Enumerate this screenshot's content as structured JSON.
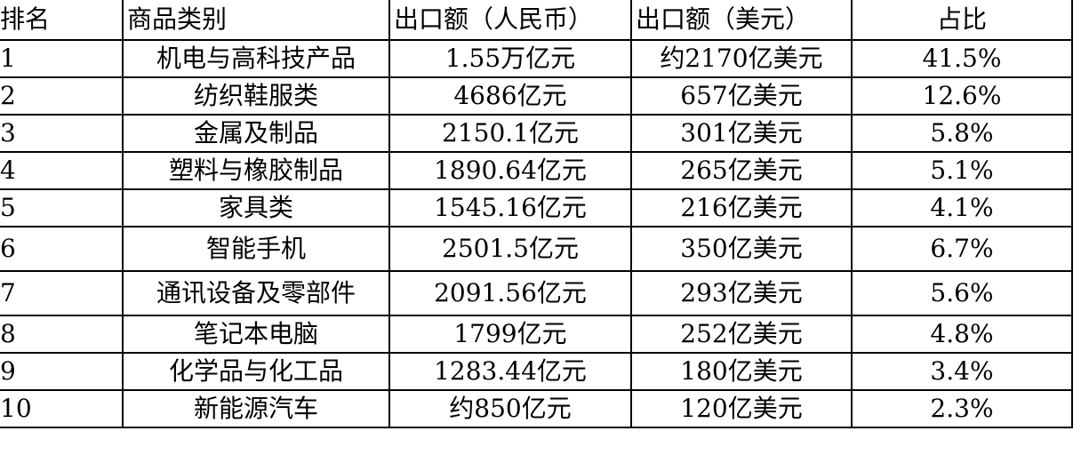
{
  "table": {
    "headers": {
      "rank": "排名",
      "category": "商品类别",
      "export_cny": "出口额（人民币）",
      "export_usd": "出口额（美元）",
      "share": "占比"
    },
    "rows": [
      {
        "rank": "1",
        "category": "机电与高科技产品",
        "export_cny": "1.55万亿元",
        "export_usd": "约2170亿美元",
        "share": "41.5%"
      },
      {
        "rank": "2",
        "category": "纺织鞋服类",
        "export_cny": "4686亿元",
        "export_usd": "657亿美元",
        "share": "12.6%"
      },
      {
        "rank": "3",
        "category": "金属及制品",
        "export_cny": "2150.1亿元",
        "export_usd": "301亿美元",
        "share": "5.8%"
      },
      {
        "rank": "4",
        "category": "塑料与橡胶制品",
        "export_cny": "1890.64亿元",
        "export_usd": "265亿美元",
        "share": "5.1%"
      },
      {
        "rank": "5",
        "category": "家具类",
        "export_cny": "1545.16亿元",
        "export_usd": "216亿美元",
        "share": "4.1%"
      },
      {
        "rank": "6",
        "category": "智能手机",
        "export_cny": "2501.5亿元",
        "export_usd": "350亿美元",
        "share": "6.7%"
      },
      {
        "rank": "7",
        "category": "通讯设备及零部件",
        "export_cny": "2091.56亿元",
        "export_usd": "293亿美元",
        "share": "5.6%"
      },
      {
        "rank": "8",
        "category": "笔记本电脑",
        "export_cny": "1799亿元",
        "export_usd": "252亿美元",
        "share": "4.8%"
      },
      {
        "rank": "9",
        "category": "化学品与化工品",
        "export_cny": "1283.44亿元",
        "export_usd": "180亿美元",
        "share": "3.4%"
      },
      {
        "rank": "10",
        "category": "新能源汽车",
        "export_cny": "约850亿元",
        "export_usd": "120亿美元",
        "share": "2.3%"
      }
    ]
  }
}
